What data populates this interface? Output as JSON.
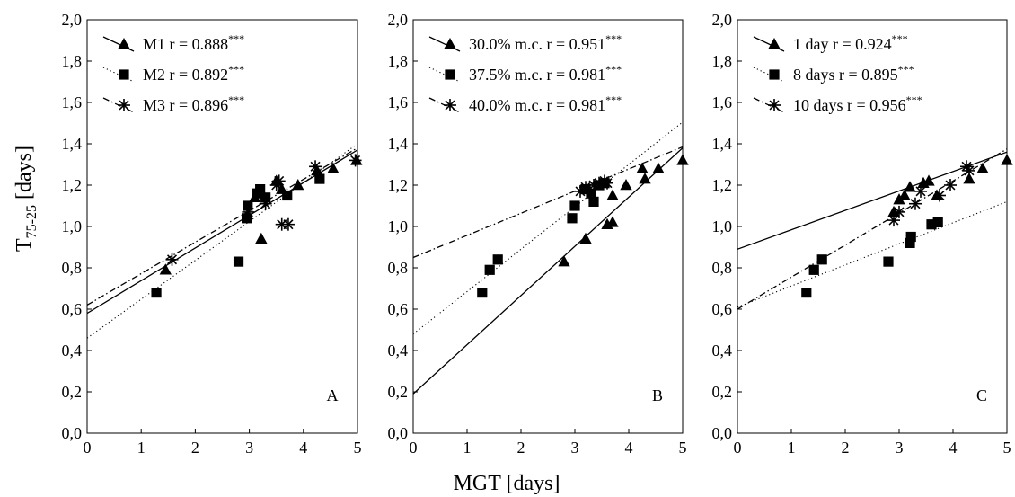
{
  "figure": {
    "y_axis_label_main": "T",
    "y_axis_label_sub": "75-25",
    "y_axis_label_unit": " [days]",
    "x_axis_label": "MGT [days]"
  },
  "chart_data": [
    {
      "type": "scatter",
      "panel": "A",
      "xlim": [
        0,
        5
      ],
      "ylim": [
        0,
        2.0
      ],
      "x_ticks": [
        "0",
        "1",
        "2",
        "3",
        "4",
        "5"
      ],
      "y_ticks": [
        "0,0",
        "0,2",
        "0,4",
        "0,6",
        "0,8",
        "1,0",
        "1,2",
        "1,4",
        "1,6",
        "1,8",
        "2,0"
      ],
      "grid": false,
      "legend_position": "top-left",
      "series": [
        {
          "name": "M1",
          "r_label": "r = 0.888",
          "significance": "***",
          "marker": "triangle",
          "line": "solid",
          "fit": {
            "intercept": 0.58,
            "slope": 0.158
          },
          "points": [
            [
              1.45,
              0.79
            ],
            [
              3.22,
              0.94
            ],
            [
              3.1,
              1.14
            ],
            [
              3.5,
              1.22
            ],
            [
              3.6,
              1.18
            ],
            [
              3.9,
              1.2
            ],
            [
              4.25,
              1.27
            ],
            [
              4.55,
              1.28
            ],
            [
              4.98,
              1.32
            ]
          ]
        },
        {
          "name": "M2",
          "r_label": "r = 0.892",
          "significance": "***",
          "marker": "square",
          "line": "dotted",
          "fit": {
            "intercept": 0.46,
            "slope": 0.188
          },
          "points": [
            [
              1.28,
              0.68
            ],
            [
              2.8,
              0.83
            ],
            [
              2.95,
              1.04
            ],
            [
              2.97,
              1.1
            ],
            [
              3.2,
              1.18
            ],
            [
              3.15,
              1.16
            ],
            [
              3.3,
              1.14
            ],
            [
              3.7,
              1.15
            ],
            [
              4.3,
              1.23
            ]
          ]
        },
        {
          "name": "M3",
          "r_label": "r = 0.896",
          "significance": "***",
          "marker": "asterisk",
          "line": "dashdot",
          "fit": {
            "intercept": 0.62,
            "slope": 0.152
          },
          "points": [
            [
              1.57,
              0.84
            ],
            [
              2.98,
              1.07
            ],
            [
              3.3,
              1.11
            ],
            [
              3.5,
              1.2
            ],
            [
              3.55,
              1.22
            ],
            [
              3.6,
              1.01
            ],
            [
              3.72,
              1.01
            ],
            [
              4.22,
              1.29
            ],
            [
              4.96,
              1.32
            ]
          ]
        }
      ]
    },
    {
      "type": "scatter",
      "panel": "B",
      "xlim": [
        0,
        5
      ],
      "ylim": [
        0,
        2.0
      ],
      "x_ticks": [
        "0",
        "1",
        "2",
        "3",
        "4",
        "5"
      ],
      "y_ticks": [
        "0,0",
        "0,2",
        "0,4",
        "0,6",
        "0,8",
        "1,0",
        "1,2",
        "1,4",
        "1,6",
        "1,8",
        "2,0"
      ],
      "grid": false,
      "legend_position": "top-left",
      "series": [
        {
          "name": "30.0% m.c.",
          "r_label": "r = 0.951",
          "significance": "***",
          "marker": "triangle",
          "line": "solid",
          "fit": {
            "intercept": 0.19,
            "slope": 0.238
          },
          "points": [
            [
              2.8,
              0.83
            ],
            [
              3.2,
              0.94
            ],
            [
              3.6,
              1.01
            ],
            [
              3.7,
              1.02
            ],
            [
              3.7,
              1.15
            ],
            [
              3.95,
              1.2
            ],
            [
              4.25,
              1.28
            ],
            [
              4.3,
              1.23
            ],
            [
              4.55,
              1.28
            ],
            [
              5.0,
              1.32
            ]
          ]
        },
        {
          "name": "37.5% m.c.",
          "r_label": "r = 0.981",
          "significance": "***",
          "marker": "square",
          "line": "dotted",
          "fit": {
            "intercept": 0.48,
            "slope": 0.205
          },
          "points": [
            [
              1.28,
              0.68
            ],
            [
              1.42,
              0.79
            ],
            [
              1.57,
              0.84
            ],
            [
              2.95,
              1.04
            ],
            [
              3.0,
              1.1
            ],
            [
              3.2,
              1.18
            ],
            [
              3.3,
              1.16
            ],
            [
              3.35,
              1.12
            ],
            [
              3.45,
              1.2
            ],
            [
              3.55,
              1.21
            ]
          ]
        },
        {
          "name": "40.0% m.c.",
          "r_label": "r = 0.981",
          "significance": "***",
          "marker": "asterisk",
          "line": "dashdot",
          "fit": {
            "intercept": 0.85,
            "slope": 0.107
          },
          "points": [
            [
              3.1,
              1.17
            ],
            [
              3.2,
              1.19
            ],
            [
              3.35,
              1.2
            ],
            [
              3.45,
              1.21
            ],
            [
              3.55,
              1.22
            ],
            [
              3.6,
              1.21
            ]
          ]
        }
      ]
    },
    {
      "type": "scatter",
      "panel": "C",
      "xlim": [
        0,
        5
      ],
      "ylim": [
        0,
        2.0
      ],
      "x_ticks": [
        "0",
        "1",
        "2",
        "3",
        "4",
        "5"
      ],
      "y_ticks": [
        "0,0",
        "0,2",
        "0,4",
        "0,6",
        "0,8",
        "1,0",
        "1,2",
        "1,4",
        "1,6",
        "1,8",
        "2,0"
      ],
      "grid": false,
      "legend_position": "top-left",
      "series": [
        {
          "name": "1 day",
          "r_label": "r = 0.924",
          "significance": "***",
          "marker": "triangle",
          "line": "solid",
          "fit": {
            "intercept": 0.89,
            "slope": 0.094
          },
          "points": [
            [
              2.9,
              1.07
            ],
            [
              3.0,
              1.13
            ],
            [
              3.1,
              1.15
            ],
            [
              3.2,
              1.19
            ],
            [
              3.45,
              1.21
            ],
            [
              3.55,
              1.22
            ],
            [
              3.7,
              1.15
            ],
            [
              4.3,
              1.23
            ],
            [
              4.55,
              1.28
            ],
            [
              5.0,
              1.32
            ]
          ]
        },
        {
          "name": "8 days",
          "r_label": "r = 0.895",
          "significance": "***",
          "marker": "square",
          "line": "dotted",
          "fit": {
            "intercept": 0.61,
            "slope": 0.102
          },
          "points": [
            [
              1.28,
              0.68
            ],
            [
              1.42,
              0.79
            ],
            [
              1.57,
              0.84
            ],
            [
              2.8,
              0.83
            ],
            [
              3.2,
              0.92
            ],
            [
              3.22,
              0.95
            ],
            [
              3.6,
              1.01
            ],
            [
              3.72,
              1.02
            ]
          ]
        },
        {
          "name": "10 days",
          "r_label": "r = 0.956",
          "significance": "***",
          "marker": "asterisk",
          "line": "dashdot",
          "fit": {
            "intercept": 0.6,
            "slope": 0.155
          },
          "points": [
            [
              2.9,
              1.03
            ],
            [
              3.0,
              1.07
            ],
            [
              3.3,
              1.11
            ],
            [
              3.4,
              1.17
            ],
            [
              3.75,
              1.15
            ],
            [
              3.95,
              1.2
            ],
            [
              4.25,
              1.29
            ],
            [
              4.3,
              1.27
            ]
          ]
        }
      ]
    }
  ]
}
